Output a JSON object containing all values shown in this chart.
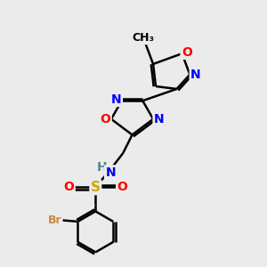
{
  "background_color": "#ebebeb",
  "atom_colors": {
    "C": "#000000",
    "N": "#0000ff",
    "O": "#ff0000",
    "S": "#ccaa00",
    "Br": "#cc8844",
    "H": "#558888"
  },
  "bond_color": "#000000",
  "bond_width": 1.8,
  "font_size_atom": 10,
  "figsize": [
    3.0,
    3.0
  ],
  "dpi": 100
}
